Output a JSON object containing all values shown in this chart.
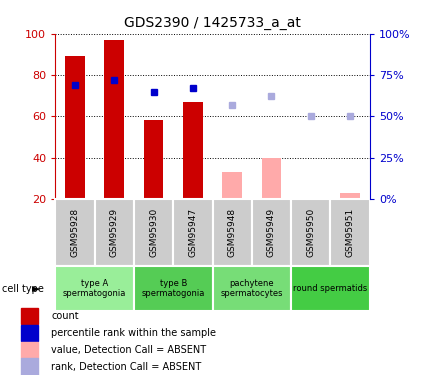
{
  "title": "GDS2390 / 1425733_a_at",
  "samples": [
    "GSM95928",
    "GSM95929",
    "GSM95930",
    "GSM95947",
    "GSM95948",
    "GSM95949",
    "GSM95950",
    "GSM95951"
  ],
  "cell_types": [
    {
      "label": "type A\nspermatogonia",
      "samples": [
        0,
        1
      ],
      "color": "#99ee99"
    },
    {
      "label": "type B\nspermatogonia",
      "samples": [
        2,
        3
      ],
      "color": "#55cc55"
    },
    {
      "label": "pachytene\nspermatocytes",
      "samples": [
        4,
        5
      ],
      "color": "#77dd77"
    },
    {
      "label": "round spermatids",
      "samples": [
        6,
        7
      ],
      "color": "#44cc44"
    }
  ],
  "bar_values": [
    89,
    97,
    58,
    67,
    null,
    null,
    null,
    null
  ],
  "bar_color_present": "#cc0000",
  "bar_values_absent": [
    null,
    null,
    null,
    null,
    33,
    40,
    20,
    23
  ],
  "bar_color_absent": "#ffaaaa",
  "rank_present": [
    69,
    72,
    65,
    67,
    null,
    null,
    null,
    null
  ],
  "rank_absent": [
    null,
    null,
    null,
    null,
    57,
    62,
    50,
    50
  ],
  "rank_color_present": "#0000cc",
  "rank_color_absent": "#aaaadd",
  "ylim_left": [
    20,
    100
  ],
  "ylim_right": [
    0,
    100
  ],
  "left_ticks": [
    20,
    40,
    60,
    80,
    100
  ],
  "right_ticks": [
    0,
    25,
    50,
    75,
    100
  ],
  "legend_items": [
    {
      "color": "#cc0000",
      "label": "count"
    },
    {
      "color": "#0000cc",
      "label": "percentile rank within the sample"
    },
    {
      "color": "#ffaaaa",
      "label": "value, Detection Call = ABSENT"
    },
    {
      "color": "#aaaadd",
      "label": "rank, Detection Call = ABSENT"
    }
  ],
  "background_color": "#ffffff",
  "sample_box_color": "#cccccc",
  "left_tick_color": "#cc0000",
  "right_tick_color": "#0000cc"
}
